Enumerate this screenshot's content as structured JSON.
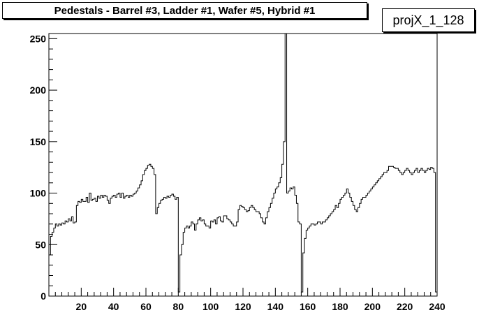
{
  "title_box": {
    "text": "Pedestals - Barrel #3, Ladder #1, Wafer #5, Hybrid #1"
  },
  "stats_box": {
    "text": "projX_1_128"
  },
  "chart_data": {
    "type": "histogram",
    "x_range": [
      0,
      240
    ],
    "y_range": [
      0,
      255
    ],
    "x_ticks": [
      20,
      40,
      60,
      80,
      100,
      120,
      140,
      160,
      180,
      200,
      220,
      240
    ],
    "y_ticks": [
      0,
      50,
      100,
      150,
      200,
      250
    ],
    "line_color": "#000000",
    "bin_width": 1,
    "values": [
      40,
      58,
      62,
      66,
      70,
      68,
      70,
      69,
      71,
      70,
      73,
      72,
      75,
      73,
      77,
      71,
      72,
      88,
      92,
      91,
      94,
      92,
      92,
      96,
      91,
      100,
      93,
      94,
      95,
      92,
      97,
      95,
      98,
      96,
      98,
      97,
      93,
      90,
      95,
      97,
      98,
      96,
      99,
      100,
      96,
      100,
      95,
      97,
      98,
      96,
      98,
      97,
      99,
      100,
      102,
      105,
      108,
      112,
      118,
      122,
      124,
      127,
      128,
      126,
      124,
      118,
      80,
      86,
      90,
      93,
      94,
      96,
      95,
      97,
      96,
      98,
      99,
      97,
      94,
      96,
      4,
      40,
      50,
      62,
      66,
      68,
      66,
      68,
      72,
      70,
      64,
      70,
      74,
      76,
      73,
      74,
      70,
      68,
      68,
      66,
      73,
      72,
      74,
      70,
      76,
      77,
      73,
      72,
      78,
      78,
      75,
      74,
      72,
      70,
      68,
      68,
      72,
      84,
      88,
      87,
      86,
      84,
      82,
      83,
      86,
      88,
      86,
      84,
      82,
      82,
      80,
      76,
      72,
      70,
      76,
      82,
      86,
      90,
      95,
      100,
      104,
      106,
      110,
      115,
      128,
      150,
      255,
      100,
      102,
      105,
      104,
      106,
      98,
      90,
      72,
      70,
      4,
      42,
      56,
      64,
      66,
      68,
      70,
      70,
      69,
      70,
      72,
      72,
      70,
      72,
      72,
      74,
      76,
      78,
      80,
      82,
      84,
      88,
      86,
      90,
      94,
      96,
      98,
      100,
      104,
      100,
      96,
      92,
      88,
      84,
      82,
      86,
      90,
      94,
      96,
      96,
      98,
      100,
      102,
      104,
      106,
      108,
      110,
      112,
      114,
      116,
      118,
      120,
      120,
      122,
      126,
      126,
      126,
      125,
      124,
      124,
      122,
      120,
      118,
      120,
      122,
      124,
      122,
      120,
      118,
      120,
      122,
      124,
      120,
      122,
      124,
      122,
      120,
      122,
      124,
      123,
      125,
      124,
      120,
      4
    ]
  }
}
